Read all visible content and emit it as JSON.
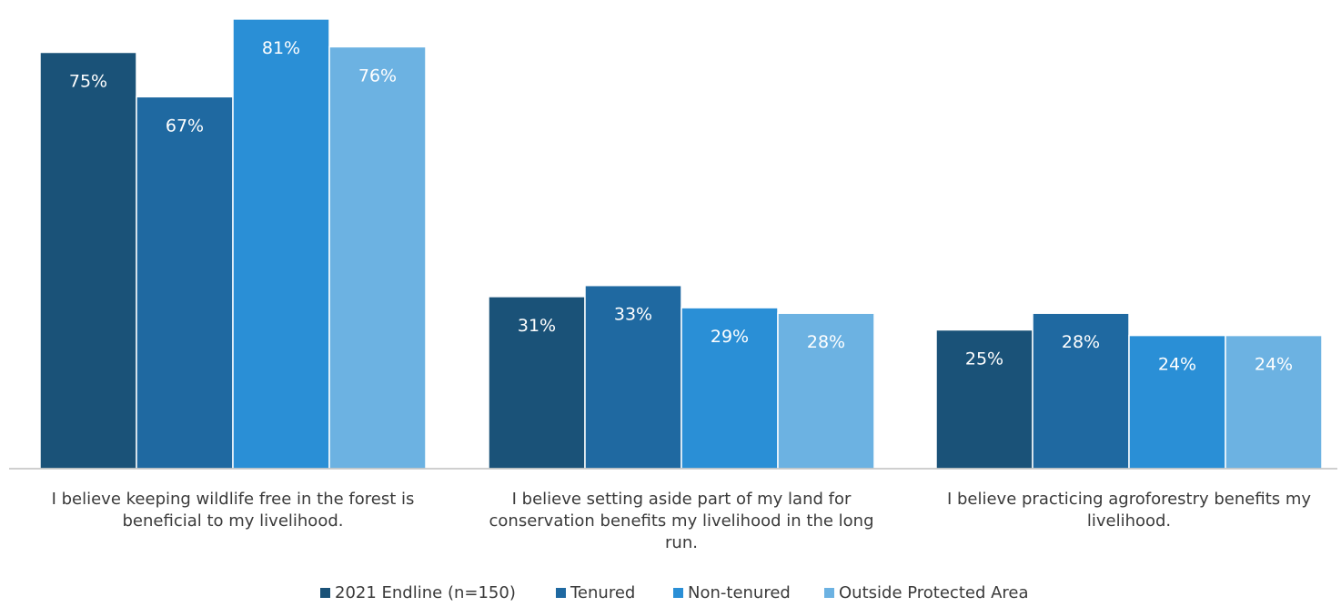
{
  "chart_data": {
    "type": "bar",
    "title": "",
    "xlabel": "",
    "ylabel": "",
    "ylim": [
      0,
      85
    ],
    "grid": false,
    "legend_position": "bottom",
    "categories": [
      [
        "I believe keeping wildlife free in the forest is",
        "beneficial to my livelihood."
      ],
      [
        "I believe setting aside part of my land for",
        "conservation benefits my livelihood in the long",
        "run."
      ],
      [
        "I believe practicing agroforestry benefits my",
        "livelihood."
      ]
    ],
    "series": [
      {
        "name": "2021 Endline (n=150)",
        "values": [
          75,
          31,
          25
        ],
        "labels": [
          "75%",
          "31%",
          "25%"
        ],
        "color": "#1a5278"
      },
      {
        "name": "Tenured",
        "values": [
          67,
          33,
          28
        ],
        "labels": [
          "67%",
          "33%",
          "28%"
        ],
        "color": "#1f69a1"
      },
      {
        "name": "Non-tenured",
        "values": [
          81,
          29,
          24
        ],
        "labels": [
          "81%",
          "29%",
          "24%"
        ],
        "color": "#2a8fd6"
      },
      {
        "name": "Outside Protected Area",
        "values": [
          76,
          28,
          24
        ],
        "labels": [
          "76%",
          "28%",
          "24%"
        ],
        "color": "#6cb2e2"
      }
    ]
  }
}
